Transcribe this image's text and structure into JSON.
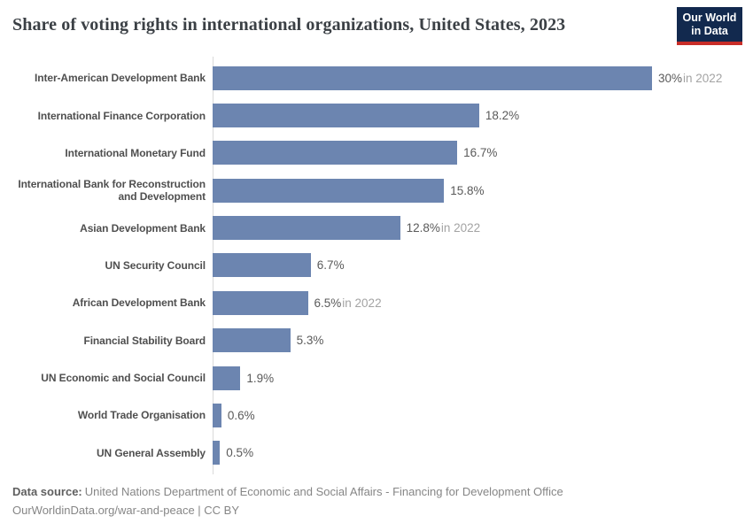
{
  "header": {
    "title": "Share of voting rights in international organizations, United States, 2023",
    "logo": {
      "line1": "Our World",
      "line2": "in Data"
    }
  },
  "chart_data": {
    "type": "bar",
    "orientation": "horizontal",
    "title": "Share of voting rights in international organizations, United States, 2023",
    "unit": "%",
    "xlim": [
      0,
      30
    ],
    "grid": false,
    "legend": false,
    "bar_color": "#6c85b0",
    "categories": [
      "Inter-American Development Bank",
      "International Finance Corporation",
      "International Monetary Fund",
      "International Bank for Reconstruction\nand Development",
      "Asian Development Bank",
      "UN Security Council",
      "African Development Bank",
      "Financial Stability Board",
      "UN Economic and Social Council",
      "World Trade Organisation",
      "UN General Assembly"
    ],
    "values": [
      30,
      18.2,
      16.7,
      15.8,
      12.8,
      6.7,
      6.5,
      5.3,
      1.9,
      0.6,
      0.5
    ],
    "value_labels": [
      "30%",
      "18.2%",
      "16.7%",
      "15.8%",
      "12.8%",
      "6.7%",
      "6.5%",
      "5.3%",
      "1.9%",
      "0.6%",
      "0.5%"
    ],
    "value_notes": [
      "in 2022",
      "",
      "",
      "",
      "in 2022",
      "",
      "in 2022",
      "",
      "",
      "",
      ""
    ]
  },
  "footer": {
    "source_label": "Data source:",
    "source_text": "United Nations Department of Economic and Social Affairs - Financing for Development Office",
    "citation": "OurWorldinData.org/war-and-peace | CC BY"
  }
}
